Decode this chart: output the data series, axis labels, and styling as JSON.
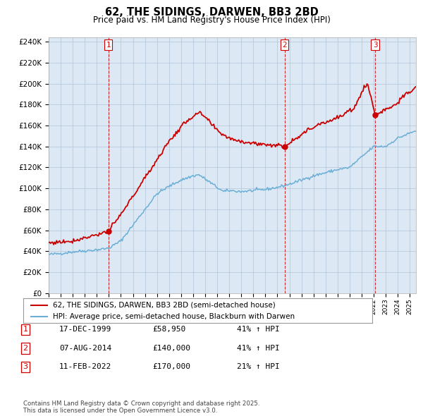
{
  "title": "62, THE SIDINGS, DARWEN, BB3 2BD",
  "subtitle": "Price paid vs. HM Land Registry's House Price Index (HPI)",
  "legend_line1": "62, THE SIDINGS, DARWEN, BB3 2BD (semi-detached house)",
  "legend_line2": "HPI: Average price, semi-detached house, Blackburn with Darwen",
  "hpi_color": "#6baed6",
  "price_color": "#cc0000",
  "sale_color": "#cc0000",
  "bg_chart": "#dce9f5",
  "purchase_table": [
    {
      "num": "1",
      "date": "17-DEC-1999",
      "price": "£58,950",
      "hpi": "41% ↑ HPI"
    },
    {
      "num": "2",
      "date": "07-AUG-2014",
      "price": "£140,000",
      "hpi": "41% ↑ HPI"
    },
    {
      "num": "3",
      "date": "11-FEB-2022",
      "price": "£170,000",
      "hpi": "21% ↑ HPI"
    }
  ],
  "footer": "Contains HM Land Registry data © Crown copyright and database right 2025.\nThis data is licensed under the Open Government Licence v3.0.",
  "ylim": [
    0,
    244000
  ],
  "ytick_step": 20000,
  "xmin": 1995.0,
  "xmax": 2025.5,
  "background_color": "#ffffff",
  "grid_color": "#b0c4d8"
}
